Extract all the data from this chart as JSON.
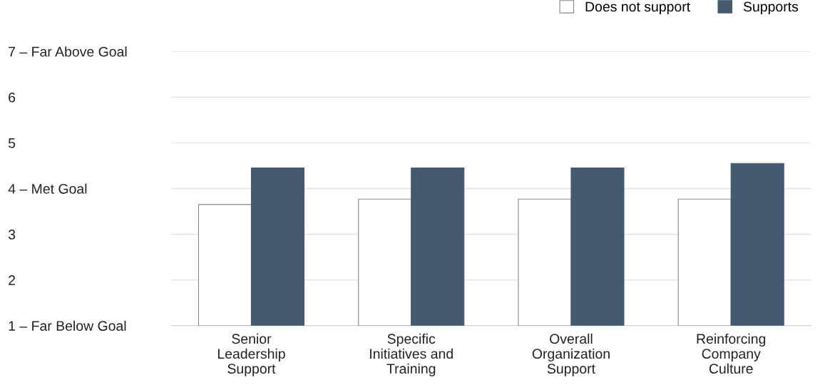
{
  "chart_data": {
    "type": "bar",
    "categories": [
      "Senior\nLeadership\nSupport",
      "Specific\nInitiatives and\nTraining",
      "Overall\nOrganization\nSupport",
      "Reinforcing\nCompany\nCulture"
    ],
    "series": [
      {
        "name": "Does not support",
        "color": "#ffffff",
        "values": [
          3.65,
          3.77,
          3.77,
          3.77
        ]
      },
      {
        "name": "Supports",
        "color": "#455a70",
        "values": [
          4.45,
          4.45,
          4.45,
          4.55
        ]
      }
    ],
    "ylim": [
      1,
      7
    ],
    "yticks": [
      {
        "value": 1,
        "label": "1 – Far Below Goal"
      },
      2,
      3,
      {
        "value": 4,
        "label": "4 – Met Goal"
      },
      5,
      6,
      {
        "value": 7,
        "label": "7 – Far Above Goal"
      }
    ],
    "grid": "y",
    "legend": "top right"
  }
}
